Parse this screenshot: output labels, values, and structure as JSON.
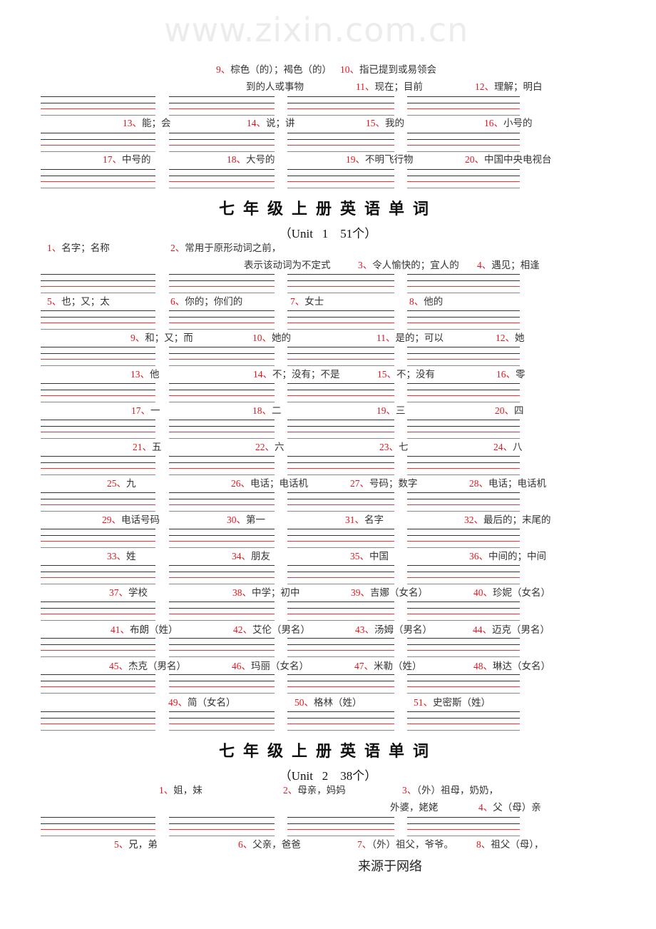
{
  "doc": {
    "watermark": "www.zixin.com.cn",
    "footer": "来源于网络"
  },
  "colors": {
    "number": "#e8141b",
    "text": "#333333",
    "guide_red": "#ee3333",
    "guide_dark": "#333333",
    "guide_gray": "#8a8a8a"
  },
  "sections": [
    {
      "title": "",
      "subtitle": "",
      "lines": [
        [
          {
            "num": "9、",
            "text": "棕色（的）；褐色（的）"
          },
          {
            "num": "10、",
            "text": "指已提到或易领会"
          }
        ],
        [
          {
            "num": "",
            "text": "到的人或事物"
          },
          {
            "num": "11、",
            "text": "现在；目前"
          },
          {
            "num": "12、",
            "text": "理解；明白"
          }
        ],
        [
          {
            "num": "13、",
            "text": "能；会"
          },
          {
            "num": "14、",
            "text": "说；讲"
          },
          {
            "num": "15、",
            "text": "我的"
          },
          {
            "num": "16、",
            "text": "小号的"
          }
        ],
        [
          {
            "num": "17、",
            "text": "中号的"
          },
          {
            "num": "18、",
            "text": "大号的"
          },
          {
            "num": "19、",
            "text": "不明飞行物"
          },
          {
            "num": "20、",
            "text": "中国中央电视台"
          }
        ]
      ]
    },
    {
      "title": "七年级上册英语单词",
      "subtitle": "（Unit   1    51个）",
      "lines": [
        [
          {
            "num": "1、",
            "text": "名字；名称"
          },
          {
            "num": "2、",
            "text": "常用于原形动词之前，"
          }
        ],
        [
          {
            "num": "",
            "text": "表示该动词为不定式"
          },
          {
            "num": "3、",
            "text": "令人愉快的；宜人的"
          },
          {
            "num": "4、",
            "text": "遇见；相逢"
          }
        ],
        [
          {
            "num": "5、",
            "text": "也；又；太"
          },
          {
            "num": "6、",
            "text": "你的；你们的"
          },
          {
            "num": "7、",
            "text": "女士"
          },
          {
            "num": "8、",
            "text": "他的"
          }
        ],
        [
          {
            "num": "9、",
            "text": "和；又；而"
          },
          {
            "num": "10、",
            "text": "她的"
          },
          {
            "num": "11、",
            "text": "是的；可以"
          },
          {
            "num": "12、",
            "text": "她"
          }
        ],
        [
          {
            "num": "13、",
            "text": "他"
          },
          {
            "num": "14、",
            "text": "不；没有；不是"
          },
          {
            "num": "15、",
            "text": "不；没有"
          },
          {
            "num": "16、",
            "text": "零"
          }
        ],
        [
          {
            "num": "17、",
            "text": "一"
          },
          {
            "num": "18、",
            "text": "二"
          },
          {
            "num": "19、",
            "text": "三"
          },
          {
            "num": "20、",
            "text": "四"
          }
        ],
        [
          {
            "num": "21、",
            "text": "五"
          },
          {
            "num": "22、",
            "text": "六"
          },
          {
            "num": "23、",
            "text": "七"
          },
          {
            "num": "24、",
            "text": "八"
          }
        ],
        [
          {
            "num": "25、",
            "text": "九"
          },
          {
            "num": "26、",
            "text": "电话；电话机"
          },
          {
            "num": "27、",
            "text": "号码；数字"
          },
          {
            "num": "28、",
            "text": "电话；电话机"
          }
        ],
        [
          {
            "num": "29、",
            "text": "电话号码"
          },
          {
            "num": "30、",
            "text": "第一"
          },
          {
            "num": "31、",
            "text": "名字"
          },
          {
            "num": "32、",
            "text": "最后的；末尾的"
          }
        ],
        [
          {
            "num": "33、",
            "text": "姓"
          },
          {
            "num": "34、",
            "text": "朋友"
          },
          {
            "num": "35、",
            "text": "中国"
          },
          {
            "num": "36、",
            "text": "中间的；中间"
          }
        ],
        [
          {
            "num": "37、",
            "text": "学校"
          },
          {
            "num": "38、",
            "text": "中学；初中"
          },
          {
            "num": "39、",
            "text": "吉娜（女名）"
          },
          {
            "num": "40、",
            "text": "珍妮（女名）"
          }
        ],
        [
          {
            "num": "41、",
            "text": "布朗（姓）"
          },
          {
            "num": "42、",
            "text": "艾伦（男名）"
          },
          {
            "num": "43、",
            "text": "汤姆（男名）"
          },
          {
            "num": "44、",
            "text": "迈克（男名）"
          }
        ],
        [
          {
            "num": "45、",
            "text": "杰克（男名）"
          },
          {
            "num": "46、",
            "text": "玛丽（女名）"
          },
          {
            "num": "47、",
            "text": "米勒（姓）"
          },
          {
            "num": "48、",
            "text": "琳达（女名）"
          }
        ],
        [
          {
            "num": "49、",
            "text": "简（女名）"
          },
          {
            "num": "50、",
            "text": "格林（姓）"
          },
          {
            "num": "51、",
            "text": "史密斯（姓）"
          }
        ]
      ]
    },
    {
      "title": "七年级上册英语单词",
      "subtitle": "（Unit   2    38个）",
      "lines": [
        [
          {
            "num": "1、",
            "text": "姐，妹"
          },
          {
            "num": "2、",
            "text": "母亲，妈妈"
          },
          {
            "num": "3、",
            "text": "（外）祖母，奶奶，"
          }
        ],
        [
          {
            "num": "",
            "text": "外婆，姥姥"
          },
          {
            "num": "4、",
            "text": "父（母）亲"
          }
        ],
        [
          {
            "num": "5、",
            "text": "兄，弟"
          },
          {
            "num": "6、",
            "text": "父亲，爸爸"
          },
          {
            "num": "7、",
            "text": "（外）祖父，爷爷。"
          },
          {
            "num": "8、",
            "text": "祖父（母），"
          }
        ]
      ]
    }
  ]
}
